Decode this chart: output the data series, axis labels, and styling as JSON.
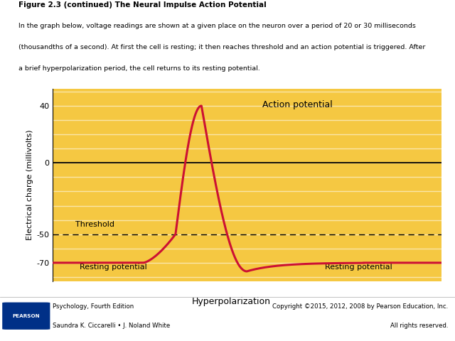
{
  "title_bold": "Figure 2.3 (continued) The Neural Impulse Action Potential",
  "subtitle_line1": "In the graph below, voltage readings are shown at a given place on the neuron over a period of 20 or 30 milliseconds",
  "subtitle_line2": "(thousandths of a second). At first the cell is resting; it then reaches threshold and an action potential is triggered. After",
  "subtitle_line3": "a brief hyperpolarization period, the cell returns to its resting potential.",
  "ylabel": "Electrical charge (millivolts)",
  "plot_bg_color": "#F5C842",
  "line_color": "#CC1133",
  "line_width": 2.2,
  "yticks": [
    -70,
    -50,
    0,
    40
  ],
  "ylim": [
    -83,
    52
  ],
  "xlim": [
    0,
    30
  ],
  "threshold_y": -50,
  "resting_y": -70,
  "action_peak_y": 40,
  "hyperpolar_y": -76,
  "label_action": "Action potential",
  "label_threshold": "Threshold",
  "label_resting_left": "Resting potential",
  "label_resting_right": "Resting potential",
  "label_hyperpolar": "Hyperpolarization",
  "footer_left_line1": "Psychology, Fourth Edition",
  "footer_left_line2": "Saundra K. Ciccarelli • J. Noland White",
  "footer_right_line1": "Copyright ©2015, 2012, 2008 by Pearson Education, Inc.",
  "footer_right_line2": "All rights reserved.",
  "pearson_blue": "#003087",
  "white_stripe_color": "#FFFFFF",
  "white_stripe_alpha": 0.55
}
